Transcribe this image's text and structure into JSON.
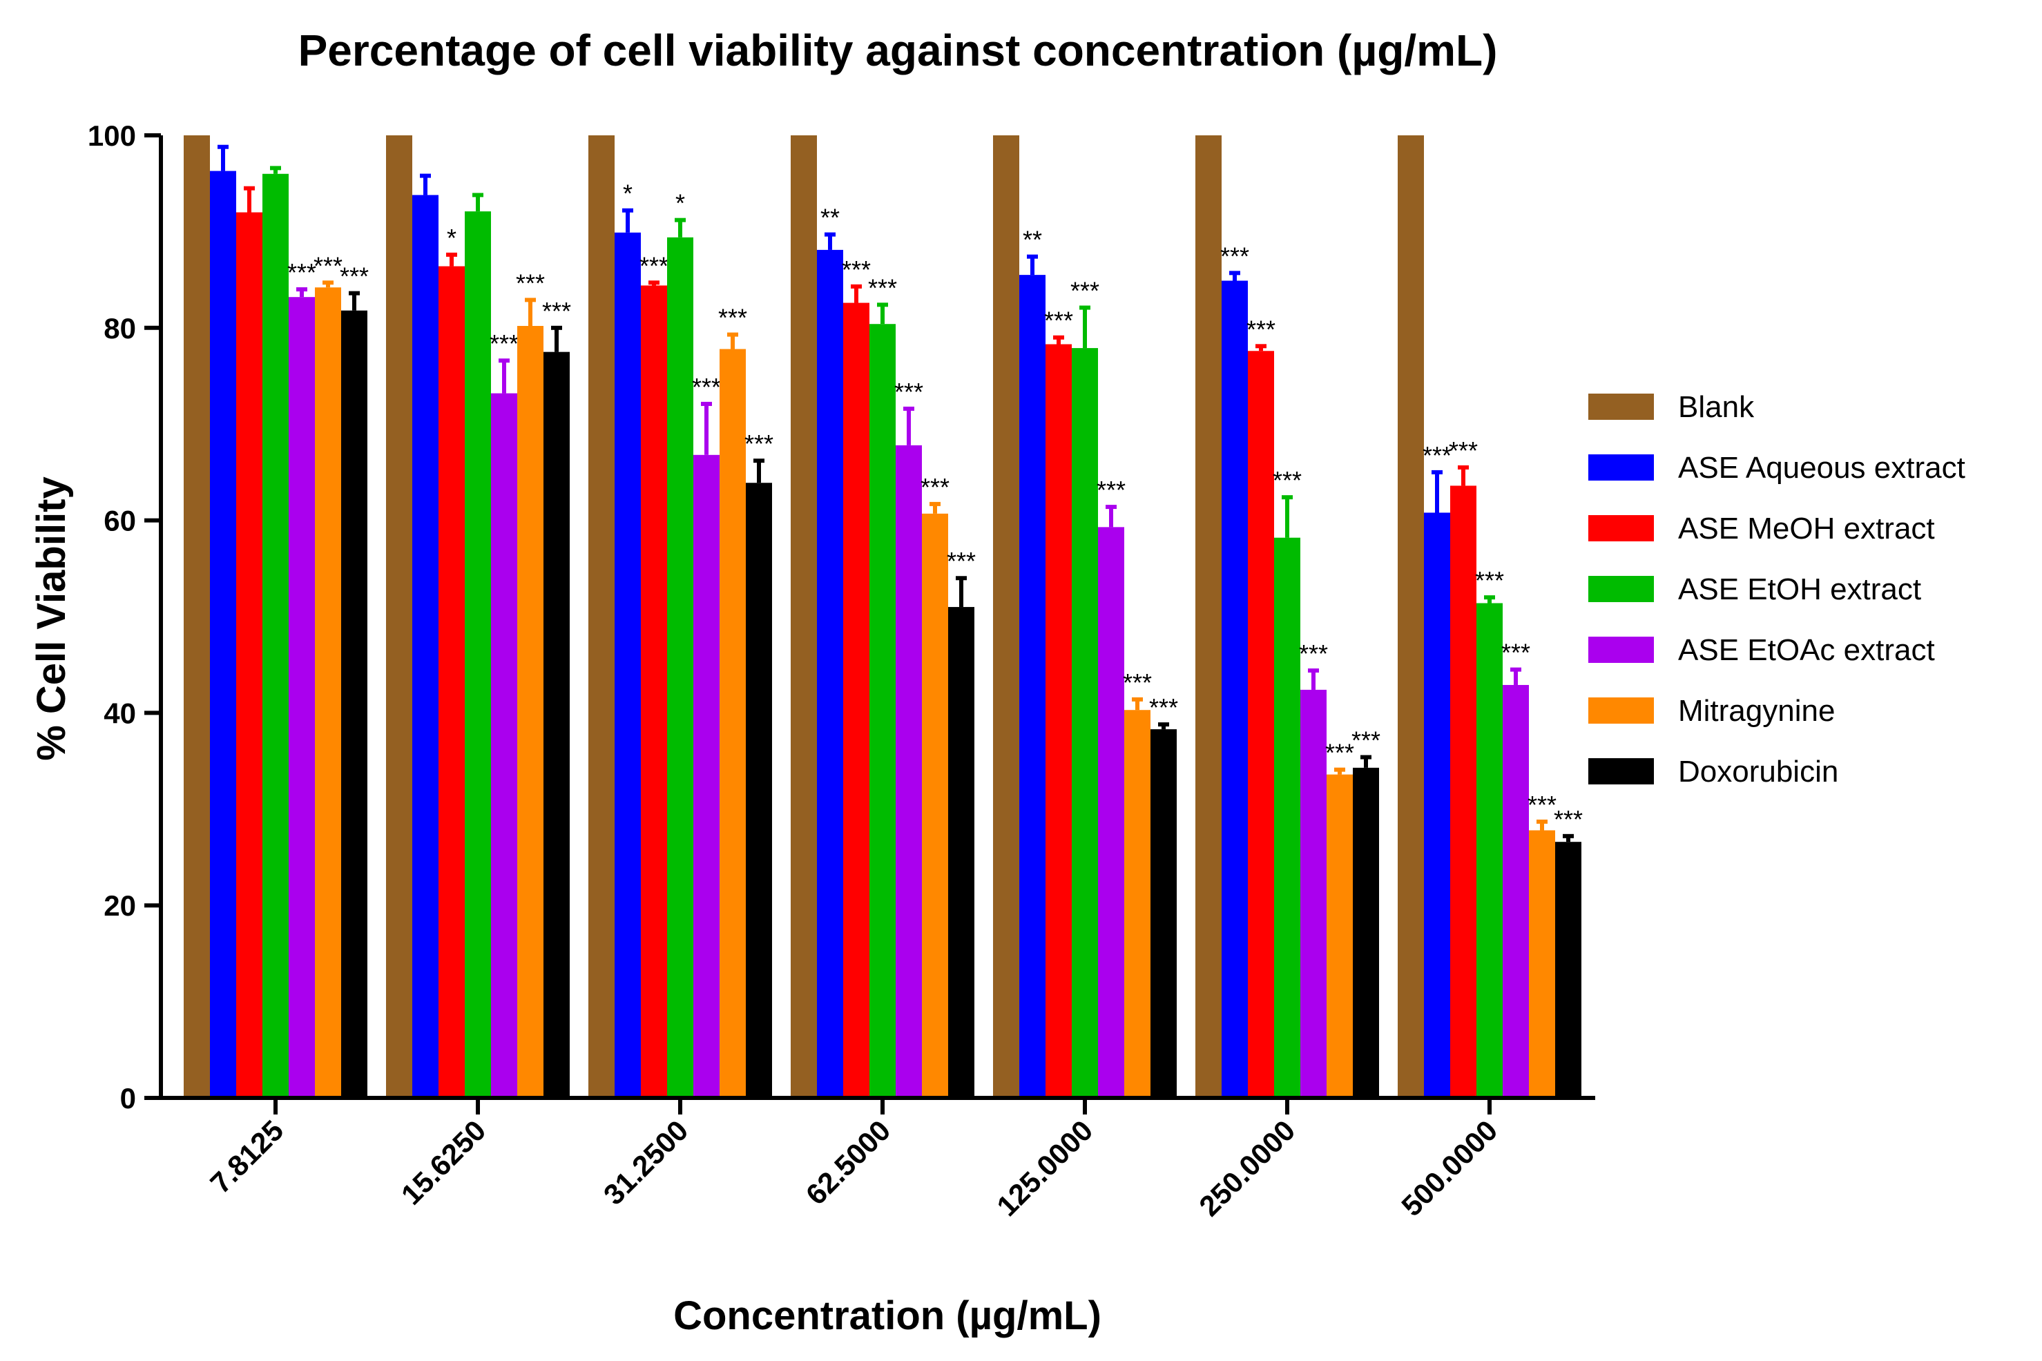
{
  "chart_data": {
    "type": "bar",
    "title": "Percentage of cell viability against concentration (µg/mL)",
    "xlabel": "Concentration (µg/mL)",
    "ylabel": "% Cell Viability",
    "ylim": [
      0,
      100
    ],
    "yticks": [
      0,
      20,
      40,
      60,
      80,
      100
    ],
    "categories": [
      "7.8125",
      "15.6250",
      "31.2500",
      "62.5000",
      "125.0000",
      "250.0000",
      "500.0000"
    ],
    "legend_position": "right",
    "series": [
      {
        "name": "Blank",
        "color": "#946022",
        "values": [
          100,
          100,
          100,
          100,
          100,
          100,
          100
        ],
        "errors": [
          0,
          0,
          0,
          0,
          0,
          0,
          0
        ],
        "sig": [
          "",
          "",
          "",
          "",
          "",
          "",
          ""
        ]
      },
      {
        "name": "ASE Aqueous extract",
        "color": "#0000ff",
        "values": [
          96.3,
          93.8,
          89.9,
          88.1,
          85.5,
          84.9,
          60.8
        ],
        "errors": [
          2.5,
          2.0,
          2.3,
          1.6,
          1.9,
          0.8,
          4.2
        ],
        "sig": [
          "",
          "",
          "*",
          "**",
          "**",
          "***",
          "***"
        ]
      },
      {
        "name": "ASE MeOH extract",
        "color": "#ff0000",
        "values": [
          92.0,
          86.4,
          84.4,
          82.6,
          78.3,
          77.6,
          63.6
        ],
        "errors": [
          2.5,
          1.2,
          0.3,
          1.7,
          0.7,
          0.5,
          1.9
        ],
        "sig": [
          "",
          "*",
          "***",
          "***",
          "***",
          "***",
          "***"
        ]
      },
      {
        "name": "ASE EtOH extract",
        "color": "#00bb00",
        "values": [
          96.0,
          92.1,
          89.4,
          80.4,
          77.9,
          58.2,
          51.4
        ],
        "errors": [
          0.6,
          1.7,
          1.8,
          2.0,
          4.2,
          4.2,
          0.6
        ],
        "sig": [
          "",
          "",
          "*",
          "***",
          "***",
          "***",
          "***"
        ]
      },
      {
        "name": "ASE EtOAc extract",
        "color": "#aa00ee",
        "values": [
          83.2,
          73.2,
          66.8,
          67.8,
          59.3,
          42.4,
          42.9
        ],
        "errors": [
          0.8,
          3.4,
          5.3,
          3.8,
          2.1,
          2.0,
          1.6
        ],
        "sig": [
          "***",
          "***",
          "***",
          "***",
          "***",
          "***",
          "***"
        ]
      },
      {
        "name": "Mitragynine",
        "color": "#ff8800",
        "values": [
          84.2,
          80.2,
          77.8,
          60.7,
          40.3,
          33.6,
          27.8
        ],
        "errors": [
          0.5,
          2.7,
          1.5,
          1.0,
          1.1,
          0.5,
          0.9
        ],
        "sig": [
          "***",
          "***",
          "***",
          "***",
          "***",
          "***",
          "***"
        ]
      },
      {
        "name": "Doxorubicin",
        "color": "#000000",
        "values": [
          81.8,
          77.5,
          63.9,
          51.0,
          38.3,
          34.3,
          26.6
        ],
        "errors": [
          1.8,
          2.5,
          2.3,
          3.0,
          0.5,
          1.1,
          0.6
        ],
        "sig": [
          "***",
          "***",
          "***",
          "***",
          "***",
          "***",
          "***"
        ]
      }
    ]
  }
}
